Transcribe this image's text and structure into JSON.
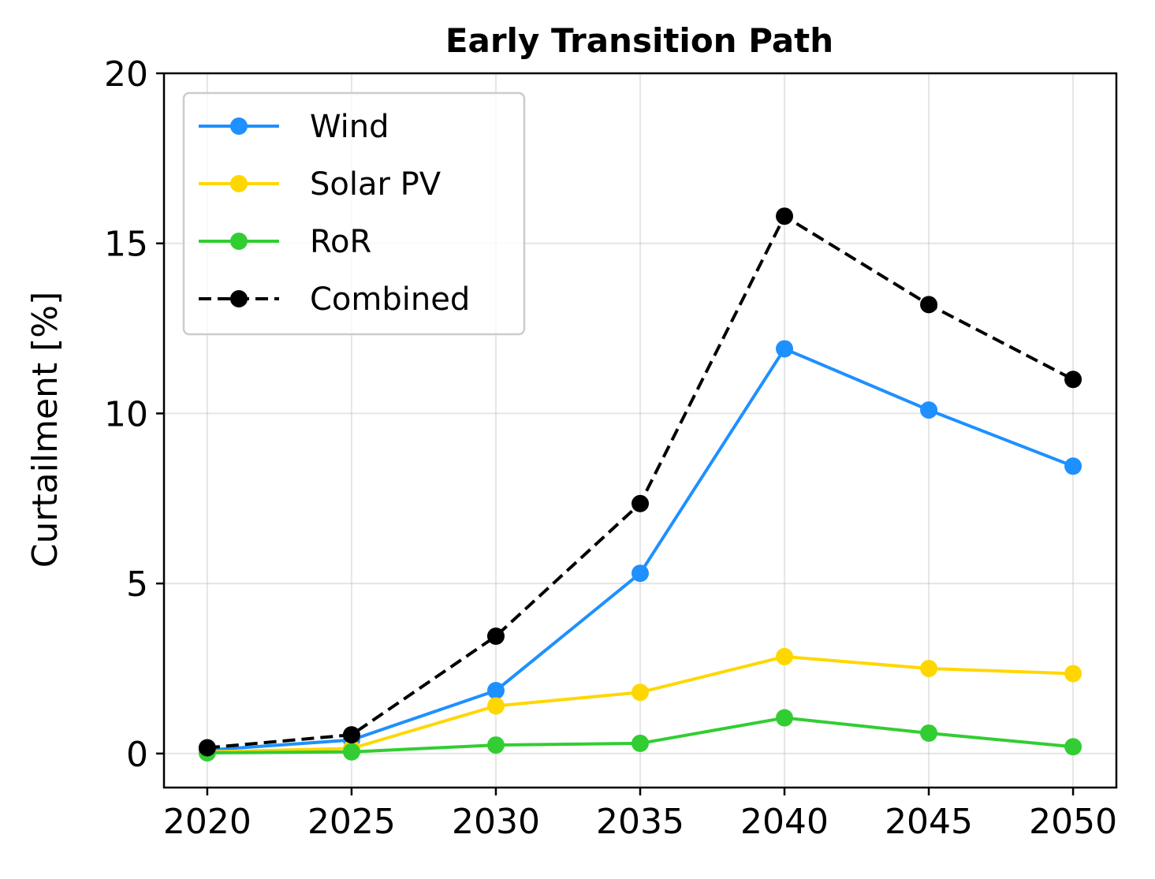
{
  "chart_data": {
    "type": "line",
    "title": "Early Transition Path",
    "xlabel": "",
    "ylabel": "Curtailment [%]",
    "x": [
      2020,
      2025,
      2030,
      2035,
      2040,
      2045,
      2050
    ],
    "xticks": [
      "2020",
      "2025",
      "2030",
      "2035",
      "2040",
      "2045",
      "2050"
    ],
    "yticks": [
      "0",
      "5",
      "10",
      "15",
      "20"
    ],
    "xlim": [
      2018.5,
      2051.5
    ],
    "ylim": [
      -1,
      20
    ],
    "grid": true,
    "legend_position": "top-left",
    "series": [
      {
        "name": "Wind",
        "color": "#1E90FF",
        "dashed": false,
        "values": [
          0.1,
          0.4,
          1.85,
          5.3,
          11.9,
          10.1,
          8.45
        ]
      },
      {
        "name": "Solar PV",
        "color": "#FFD700",
        "dashed": false,
        "values": [
          0.05,
          0.15,
          1.4,
          1.8,
          2.85,
          2.5,
          2.35
        ]
      },
      {
        "name": "RoR",
        "color": "#32CD32",
        "dashed": false,
        "values": [
          0.02,
          0.05,
          0.25,
          0.3,
          1.05,
          0.6,
          0.2
        ]
      },
      {
        "name": "Combined",
        "color": "#000000",
        "dashed": true,
        "values": [
          0.17,
          0.55,
          3.45,
          7.35,
          15.8,
          13.2,
          11.0
        ]
      }
    ]
  }
}
